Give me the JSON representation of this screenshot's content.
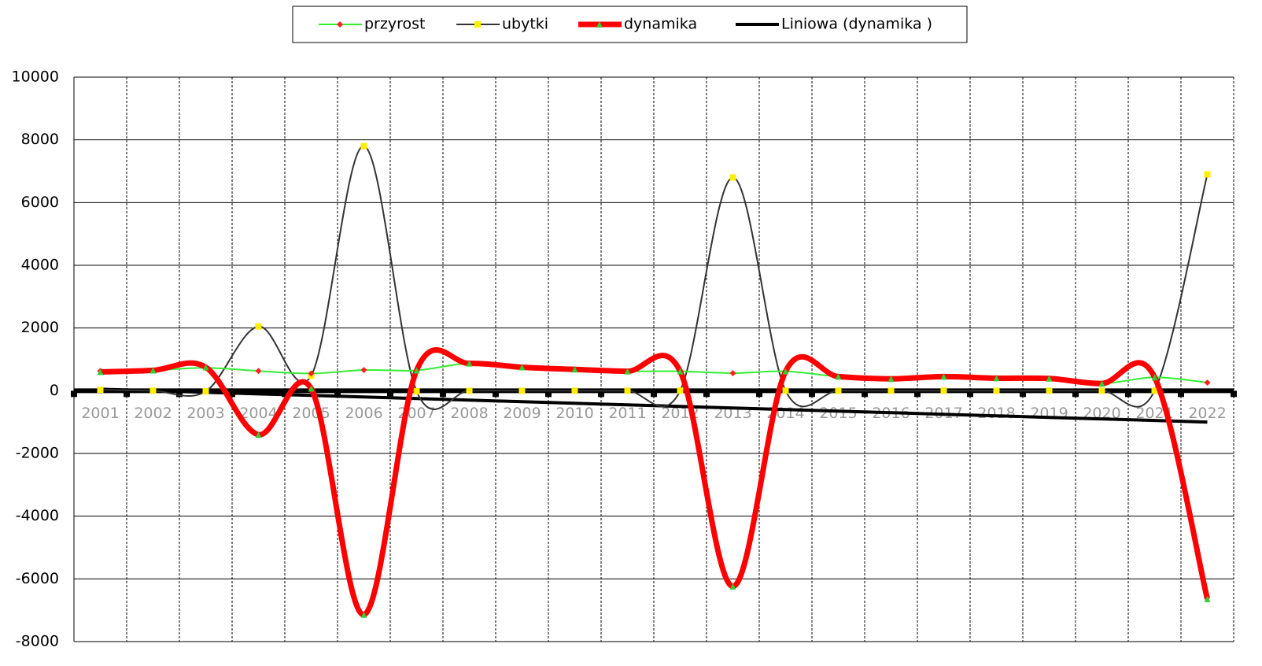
{
  "chart_data": {
    "type": "line",
    "categories": [
      "2001",
      "2002",
      "2003",
      "2004",
      "2005",
      "2006",
      "2007",
      "2008",
      "2009",
      "2010",
      "2011",
      "2012",
      "2013",
      "2014",
      "2015",
      "2016",
      "2017",
      "2018",
      "2019",
      "2020",
      "2021",
      "2022"
    ],
    "ylim": [
      -8000,
      10000
    ],
    "yticks": [
      -8000,
      -6000,
      -4000,
      -2000,
      0,
      2000,
      4000,
      6000,
      8000,
      10000
    ],
    "grid": true,
    "smooth": true,
    "legend": "top",
    "series": [
      {
        "name": "przyrost",
        "color": "#33ee33",
        "width": 2,
        "marker": "diamond",
        "marker_color": "#ff2020",
        "values": [
          630,
          650,
          730,
          630,
          550,
          660,
          650,
          870,
          750,
          680,
          620,
          620,
          560,
          620,
          450,
          380,
          450,
          400,
          390,
          230,
          430,
          260
        ]
      },
      {
        "name": "ubytki",
        "color": "#333333",
        "width": 2,
        "marker": "square",
        "marker_color": "#ffee00",
        "values": [
          30,
          0,
          -20,
          2050,
          480,
          7800,
          -20,
          0,
          0,
          0,
          0,
          0,
          6800,
          0,
          0,
          0,
          0,
          0,
          0,
          0,
          0,
          6900
        ]
      },
      {
        "name": "dynamika",
        "color": "#ff0000",
        "width": 7,
        "marker": "triangle",
        "marker_color": "#33cc33",
        "values": [
          600,
          650,
          750,
          -1400,
          70,
          -7140,
          650,
          870,
          750,
          680,
          620,
          620,
          -6240,
          620,
          450,
          380,
          450,
          400,
          390,
          230,
          430,
          -6640
        ]
      },
      {
        "name": "Liniowa (dynamika )",
        "color": "#000000",
        "width": 4,
        "marker": "none",
        "smooth": false,
        "values": [
          50,
          0,
          -50,
          -100,
          -150,
          -200,
          -250,
          -300,
          -350,
          -400,
          -450,
          -500,
          -550,
          -600,
          -650,
          -700,
          -750,
          -800,
          -850,
          -900,
          -950,
          -1000
        ]
      }
    ]
  }
}
